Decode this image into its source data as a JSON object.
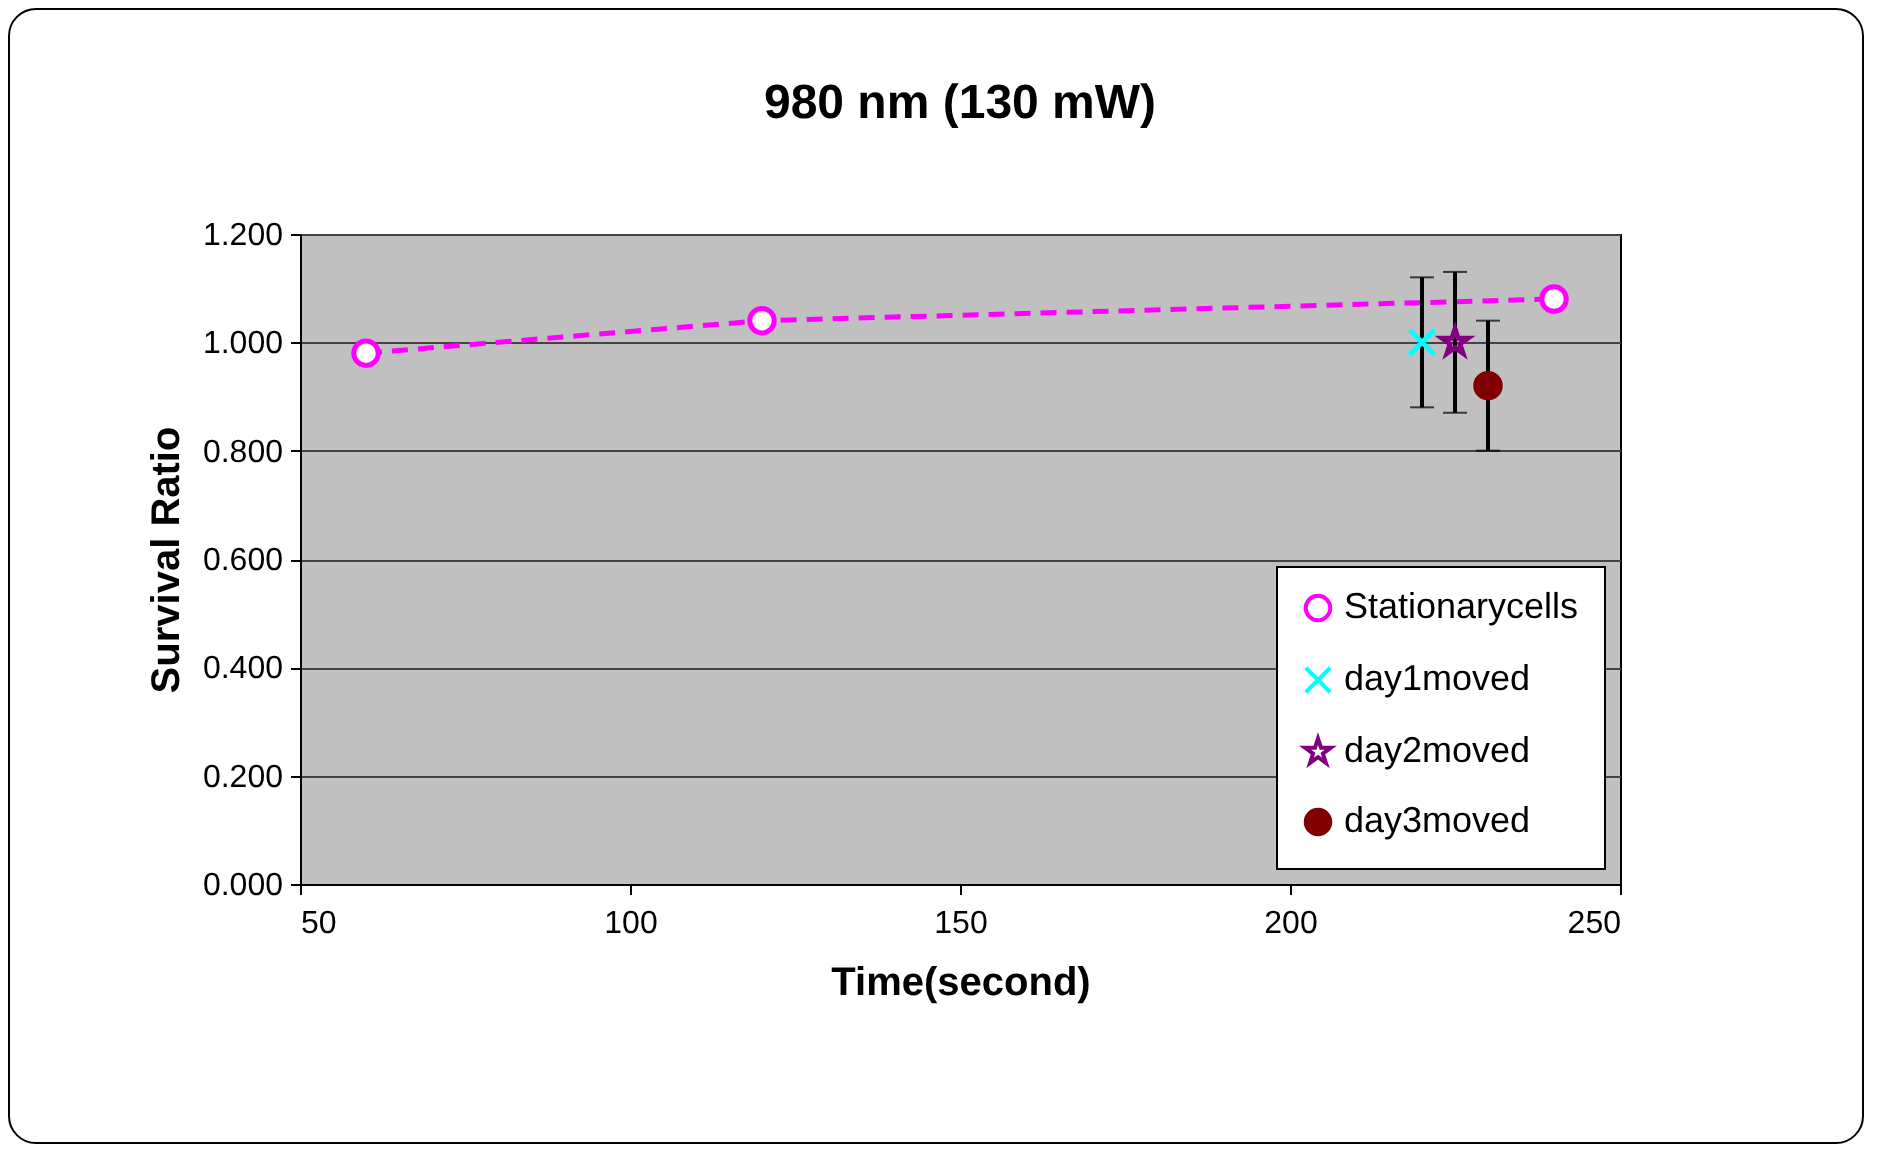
{
  "chart_data": {
    "type": "line",
    "title": "980 nm (130 mW)",
    "xlabel": "Time(second)",
    "ylabel": "Survival Ratio",
    "xlim": [
      50,
      250
    ],
    "xticks": [
      50,
      100,
      150,
      200,
      250
    ],
    "ylim": [
      0,
      1.2
    ],
    "yticks": [
      {
        "value": 0,
        "label": "0.000"
      },
      {
        "value": 0.2,
        "label": "0.200"
      },
      {
        "value": 0.4,
        "label": "0.400"
      },
      {
        "value": 0.6,
        "label": "0.600"
      },
      {
        "value": 0.8,
        "label": "0.800"
      },
      {
        "value": 1.0,
        "label": "1.000"
      },
      {
        "value": 1.2,
        "label": "1.200"
      }
    ],
    "grid": "y",
    "legend": "bottom right",
    "series": [
      {
        "name": "Stationarycells",
        "color": "#ff00ff",
        "marker": "circle",
        "line_style": "dashed",
        "x": [
          60,
          120,
          240
        ],
        "values": [
          0.98,
          1.04,
          1.08
        ]
      },
      {
        "name": "day1moved",
        "type": "scatter",
        "color": "#00ffff",
        "marker": "cross",
        "x": [
          220
        ],
        "values": [
          1.0
        ],
        "errors": [
          0.12
        ]
      },
      {
        "name": "day2moved",
        "type": "scatter",
        "color": "#800080",
        "marker": "star",
        "x": [
          225
        ],
        "values": [
          1.0
        ],
        "errors": [
          0.13
        ]
      },
      {
        "name": "day3moved",
        "type": "scatter",
        "color": "#800000",
        "marker": "circle",
        "x": [
          230
        ],
        "values": [
          0.92
        ],
        "errors": [
          0.12
        ]
      }
    ]
  }
}
